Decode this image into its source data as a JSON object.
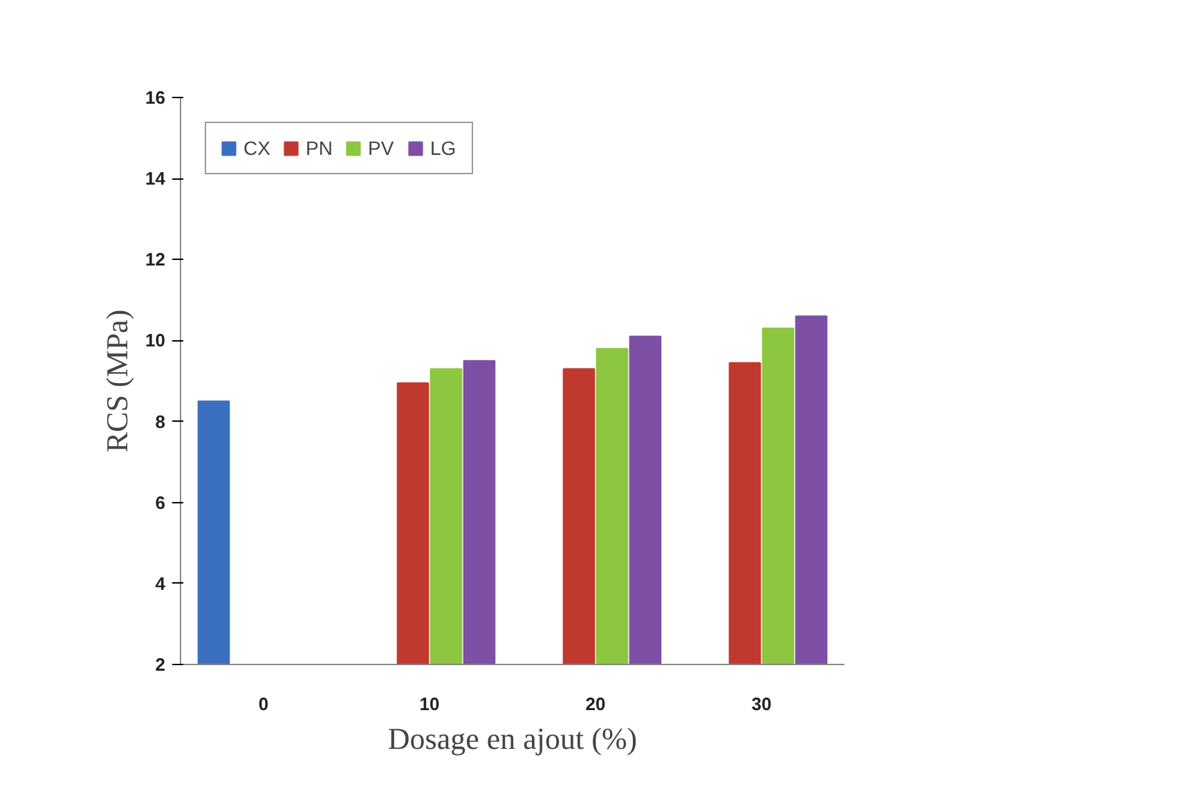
{
  "chart_data": {
    "type": "bar",
    "xlabel": "Dosage en ajout (%)",
    "ylabel": "RCS (MPa)",
    "categories": [
      "0",
      "10",
      "20",
      "30"
    ],
    "series": [
      {
        "name": "CX",
        "color": "#3b6fc0",
        "values": [
          8.5,
          null,
          null,
          null
        ]
      },
      {
        "name": "PN",
        "color": "#c0392f",
        "values": [
          null,
          8.95,
          9.3,
          9.45
        ]
      },
      {
        "name": "PV",
        "color": "#8dc63f",
        "values": [
          null,
          9.3,
          9.8,
          10.3
        ]
      },
      {
        "name": "LG",
        "color": "#7d4fa5",
        "values": [
          null,
          9.5,
          10.1,
          10.6
        ]
      }
    ],
    "ylim": [
      2,
      16
    ],
    "yticks": [
      2,
      4,
      6,
      8,
      10,
      12,
      14,
      16
    ],
    "grid": false,
    "legend": "top left"
  }
}
